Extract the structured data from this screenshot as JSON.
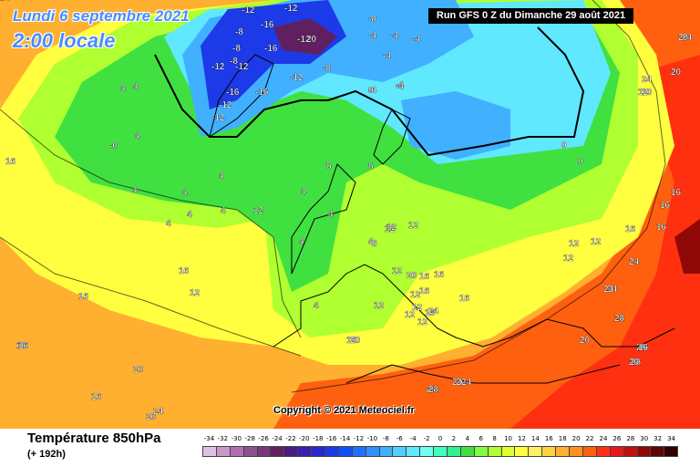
{
  "header": {
    "date_line": "Lundi 6 septembre 2021",
    "time_line": "2:00 locale",
    "run_info": "Run GFS 0 Z du Dimanche 29 août 2021"
  },
  "copyright": "Copyright © 2021 Meteociel.fr",
  "footer": {
    "parameter_title": "Température 850hPa",
    "forecast_offset": "(+ 192h)"
  },
  "legend": {
    "labels": [
      "-34",
      "-32",
      "-30",
      "-28",
      "-26",
      "-24",
      "-22",
      "-20",
      "-18",
      "-16",
      "-14",
      "-12",
      "-10",
      "-8",
      "-6",
      "-4",
      "-2",
      "0",
      "2",
      "4",
      "6",
      "8",
      "10",
      "12",
      "14",
      "16",
      "18",
      "20",
      "22",
      "24",
      "26",
      "28",
      "30",
      "32",
      "34"
    ],
    "colors": [
      "#e0c0e0",
      "#c898c8",
      "#b070b0",
      "#905090",
      "#783878",
      "#602060",
      "#4b1a86",
      "#3a1fb0",
      "#2828d0",
      "#1c3ae8",
      "#1050f8",
      "#2070ff",
      "#3090ff",
      "#40b0ff",
      "#50d0ff",
      "#60e8ff",
      "#70fff0",
      "#40ffc0",
      "#30f090",
      "#40e040",
      "#80ff40",
      "#b0ff30",
      "#e0ff30",
      "#ffff40",
      "#fff060",
      "#ffd040",
      "#ffb030",
      "#ff9020",
      "#ff6010",
      "#ff3010",
      "#e81818",
      "#c01010",
      "#900808",
      "#600404",
      "#300000"
    ]
  },
  "map": {
    "temperature_labels": [
      "-12",
      "-12",
      "-8",
      "-16",
      "-12",
      "20",
      "-8",
      "-16",
      "-12",
      "-12",
      "-8",
      "-16",
      "-12",
      "-8",
      "-8",
      "-4",
      "-4",
      "-4",
      "-4",
      "-4",
      "-4",
      "-16",
      "-12",
      "-12",
      "0",
      "-4",
      "4",
      "4",
      "4",
      "-0",
      "4",
      "4",
      "4",
      "4",
      "4",
      "4",
      "8",
      "4",
      "4",
      "8",
      "4",
      "4",
      "12",
      "4",
      "8",
      "12",
      "12",
      "16",
      "16",
      "16",
      "12",
      "16",
      "20",
      "20",
      "24",
      "24",
      "24",
      "20",
      "20",
      "24",
      "24",
      "0",
      "0",
      "16",
      "16",
      "16",
      "16",
      "12",
      "16",
      "12",
      "12",
      "16",
      "16",
      "20",
      "24",
      "24",
      "24",
      "28",
      "28",
      "12",
      "12",
      "12",
      "16",
      "16",
      "16",
      "16",
      "20",
      "24",
      "24",
      "28",
      "24",
      "20",
      "12",
      "12",
      "12",
      "12",
      "16",
      "12",
      "20",
      "24",
      "24",
      "28",
      "16",
      "20",
      "20",
      "24",
      "24",
      "28"
    ]
  }
}
